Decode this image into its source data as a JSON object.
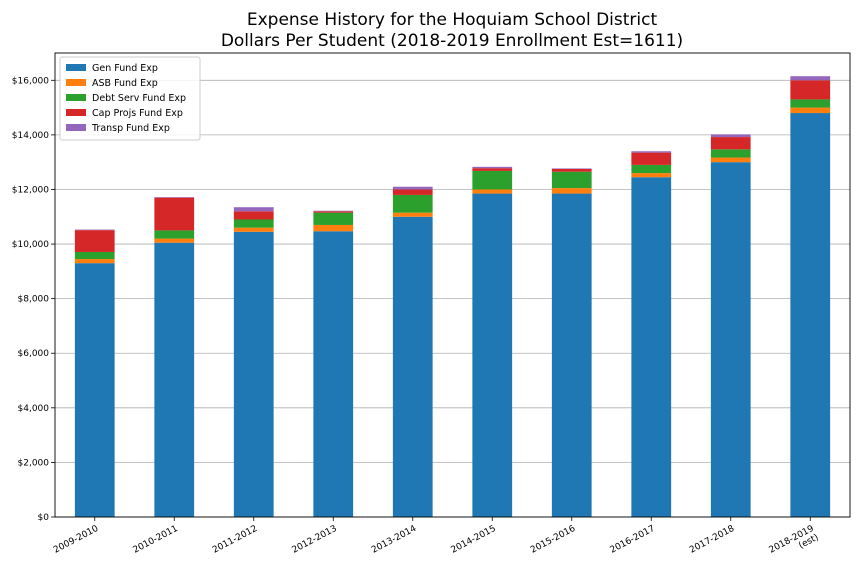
{
  "chart_data": {
    "type": "bar",
    "stacked": true,
    "title": "Expense History for the Hoquiam School District",
    "subtitle": "Dollars Per Student (2018-2019 Enrollment Est=1611)",
    "xlabel": "",
    "ylabel": "",
    "categories": [
      "2009-2010",
      "2010-2011",
      "2011-2012",
      "2012-2013",
      "2013-2014",
      "2014-2015",
      "2015-2016",
      "2016-2017",
      "2017-2018",
      "2018-2019\n(est)"
    ],
    "ylim": [
      0,
      17000
    ],
    "yticks": [
      0,
      2000,
      4000,
      6000,
      8000,
      10000,
      12000,
      14000,
      16000
    ],
    "ytick_labels": [
      "$0",
      "$2,000",
      "$4,000",
      "$6,000",
      "$8,000",
      "$10,000",
      "$12,000",
      "$14,000",
      "$16,000"
    ],
    "grid": "horizontal",
    "legend_position": "top-left",
    "series": [
      {
        "name": "Gen Fund Exp",
        "color": "#1f77b4",
        "values": [
          9300,
          10050,
          10450,
          10470,
          11000,
          11850,
          11850,
          12450,
          13000,
          14800
        ]
      },
      {
        "name": "ASB Fund Exp",
        "color": "#ff7f0e",
        "values": [
          150,
          150,
          150,
          230,
          150,
          150,
          200,
          150,
          170,
          200
        ]
      },
      {
        "name": "Debt Serv Fund Exp",
        "color": "#2ca02c",
        "values": [
          260,
          300,
          300,
          450,
          650,
          680,
          600,
          300,
          300,
          300
        ]
      },
      {
        "name": "Cap Projs Fund Exp",
        "color": "#d62728",
        "values": [
          800,
          1200,
          300,
          50,
          200,
          100,
          100,
          450,
          450,
          700
        ]
      },
      {
        "name": "Transp Fund Exp",
        "color": "#9467bd",
        "values": [
          20,
          20,
          150,
          20,
          100,
          50,
          20,
          50,
          100,
          150
        ]
      }
    ]
  }
}
